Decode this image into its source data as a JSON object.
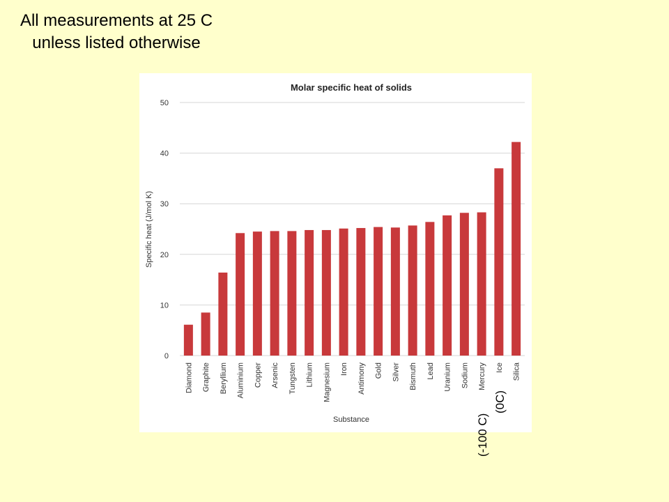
{
  "note": {
    "line1": "All measurements at 25 C",
    "line2": "unless listed otherwise"
  },
  "annotations": {
    "mercury": "(-100 C)",
    "ice": "(0C)"
  },
  "chart_data": {
    "type": "bar",
    "title": "Molar specific heat of solids",
    "xlabel": "Substance",
    "ylabel": "Specific heat (J/mol K)",
    "ylim": [
      0,
      50
    ],
    "yticks": [
      0,
      10,
      20,
      30,
      40,
      50
    ],
    "grid": true,
    "bar_color": "#c8393b",
    "categories": [
      "Diamond",
      "Graphite",
      "Beryllium",
      "Aluminium",
      "Copper",
      "Arsenic",
      "Tungsten",
      "Lithium",
      "Magnesium",
      "Iron",
      "Antimony",
      "Gold",
      "Silver",
      "Bismuth",
      "Lead",
      "Uranium",
      "Sodium",
      "Mercury",
      "Ice",
      "Silica"
    ],
    "values": [
      6.1,
      8.5,
      16.4,
      24.2,
      24.5,
      24.6,
      24.6,
      24.8,
      24.8,
      25.1,
      25.2,
      25.4,
      25.3,
      25.7,
      26.4,
      27.7,
      28.2,
      28.3,
      37.0,
      42.2
    ]
  }
}
